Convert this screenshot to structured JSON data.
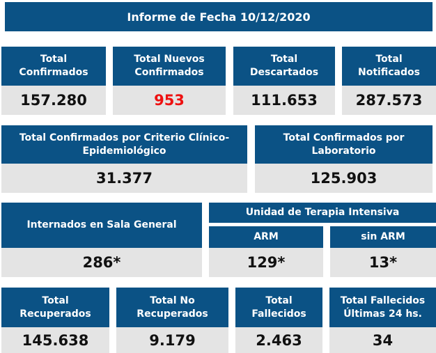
{
  "title": "Informe de Fecha 10/12/2020",
  "row1": [
    {
      "label": "Total Confirmados",
      "value": "157.280"
    },
    {
      "label": "Total Nuevos Confirmados",
      "value": "953"
    },
    {
      "label": "Total Descartados",
      "value": "111.653"
    },
    {
      "label": "Total Notificados",
      "value": "287.573"
    }
  ],
  "row2": [
    {
      "label": "Total Confirmados por Criterio Clínico-Epidemiológico",
      "value": "31.377"
    },
    {
      "label": "Total Confirmados por Laboratorio",
      "value": "125.903"
    }
  ],
  "row3": {
    "sala": {
      "label": "Internados en Sala General",
      "value": "286*"
    },
    "uti_label": "Unidad de Terapia Intensiva",
    "arm": {
      "label": "ARM",
      "value": "129*"
    },
    "sin_arm": {
      "label": "sin ARM",
      "value": "13*"
    }
  },
  "row4": [
    {
      "label": "Total Recuperados",
      "value": "145.638"
    },
    {
      "label": "Total No Recuperados",
      "value": "9.179"
    },
    {
      "label": "Total Fallecidos",
      "value": "2.463"
    },
    {
      "label": "Total Fallecidos Últimas 24 hs.",
      "value": "34"
    }
  ],
  "colors": {
    "header": "#0b5285",
    "value_bg": "#e4e4e4",
    "highlight": "#ee1111"
  }
}
